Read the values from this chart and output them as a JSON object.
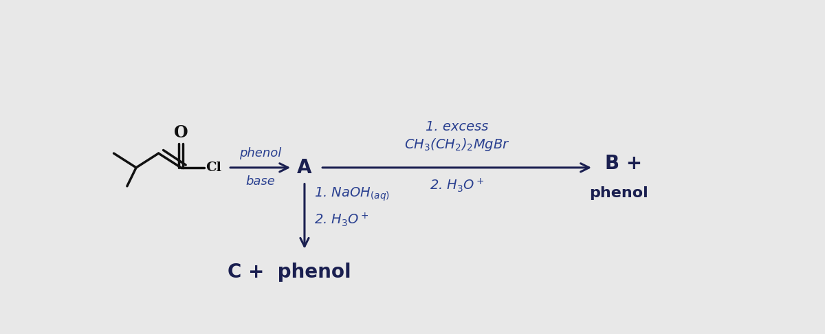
{
  "bg_color": "#e8e8e8",
  "text_color_dark": "#1a1f50",
  "text_color_blue": "#2a4090",
  "figsize": [
    12.0,
    4.86
  ],
  "dpi": 100,
  "molecule_A_label": "A",
  "molecule_B_label": "B +",
  "molecule_B_phenol": "phenol",
  "molecule_C_label": "C +  phenol",
  "arrow1_label_top": "phenol",
  "arrow1_label_bottom": "base",
  "arrow2_line1": "1. excess",
  "arrow2_line2": "CH$_3$(CH$_2$)$_2$MgBr",
  "arrow2_line3": "2. H$_3$O$^+$",
  "arrow3_line1": "1. NaOH$_{(aq)}$",
  "arrow3_line2": "2. H$_3$O$^+$",
  "mol_lw": 2.5,
  "mol_color": "#111111"
}
